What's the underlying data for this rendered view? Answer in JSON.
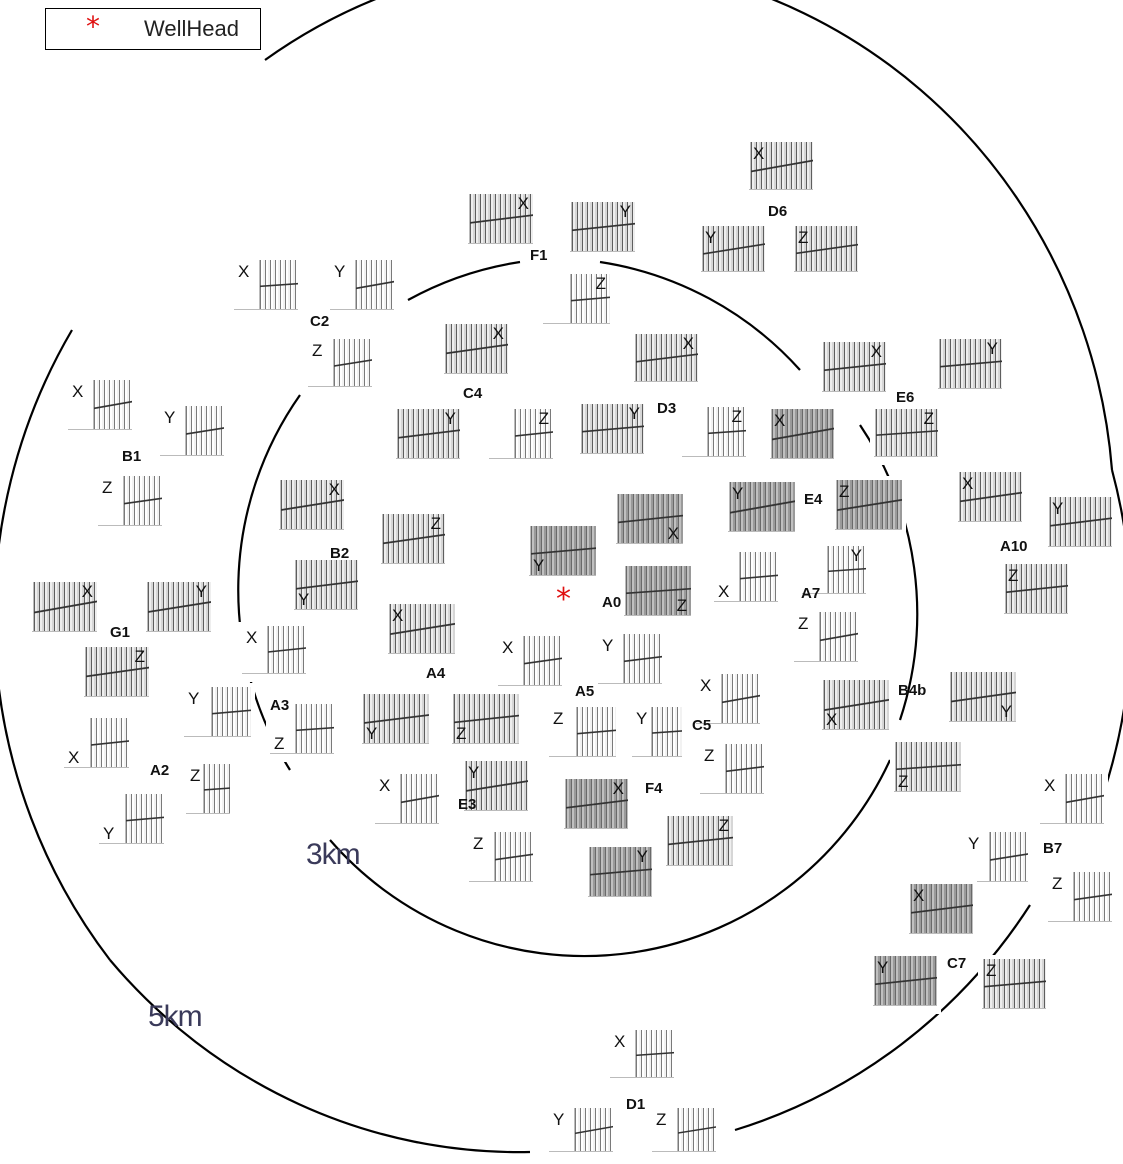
{
  "legend": {
    "label": "WellHead",
    "symbol": "*",
    "color": "#e01010"
  },
  "rings": [
    "3km",
    "5km"
  ],
  "stations": [
    "D6",
    "F1",
    "C2",
    "C4",
    "D3",
    "E6",
    "B1",
    "B2",
    "E4",
    "A10",
    "G1",
    "A0",
    "A7",
    "A4",
    "A5",
    "A3",
    "C5",
    "B4b",
    "A2",
    "E3",
    "F4",
    "B7",
    "C7",
    "D1"
  ],
  "components": [
    "X",
    "Y",
    "Z"
  ]
}
